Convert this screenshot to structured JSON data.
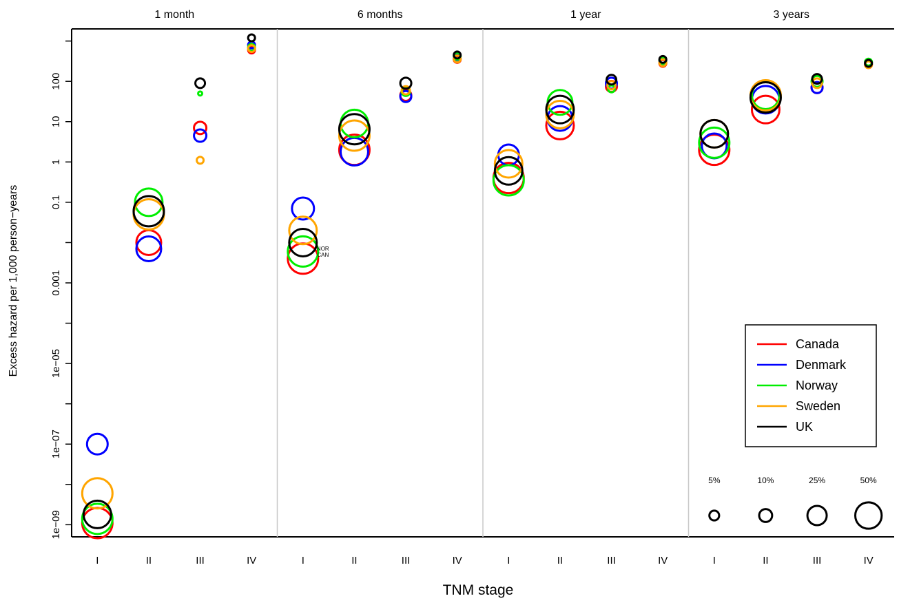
{
  "chart_data": {
    "type": "scatter",
    "xlabel": "TNM stage",
    "ylabel": "Excess hazard per 1,000 person−years",
    "y_scale": "log10",
    "ylim": [
      5e-10,
      2000
    ],
    "y_ticks": [
      {
        "value": 1e-09,
        "label": "1e−09"
      },
      {
        "value": 1e-08,
        "label": ""
      },
      {
        "value": 1e-07,
        "label": "1e−07"
      },
      {
        "value": 1e-06,
        "label": ""
      },
      {
        "value": 1e-05,
        "label": "1e−05"
      },
      {
        "value": 0.0001,
        "label": ""
      },
      {
        "value": 0.001,
        "label": "0.001"
      },
      {
        "value": 0.01,
        "label": ""
      },
      {
        "value": 0.1,
        "label": "0.1"
      },
      {
        "value": 1,
        "label": "1"
      },
      {
        "value": 10,
        "label": "10"
      },
      {
        "value": 100,
        "label": "100"
      },
      {
        "value": 1000,
        "label": ""
      }
    ],
    "stages": [
      "I",
      "II",
      "III",
      "IV"
    ],
    "panels": [
      "1 month",
      "6 months",
      "1 year",
      "3 years"
    ],
    "legend": {
      "placement": "bottom-right",
      "entries": [
        {
          "name": "Canada",
          "color": "#ff0000"
        },
        {
          "name": "Denmark",
          "color": "#0000ff"
        },
        {
          "name": "Norway",
          "color": "#00ee00"
        },
        {
          "name": "Sweden",
          "color": "#ffa500"
        },
        {
          "name": "UK",
          "color": "#000000"
        }
      ]
    },
    "size_legend": [
      {
        "label": "5%",
        "pct": 5
      },
      {
        "label": "10%",
        "pct": 10
      },
      {
        "label": "25%",
        "pct": 25
      },
      {
        "label": "50%",
        "pct": 50
      }
    ],
    "annotations": [
      {
        "panel": 1,
        "stage": 0,
        "lines": [
          "NOR",
          "CAN"
        ]
      }
    ],
    "series": [
      {
        "name": "Canada",
        "color": "#ff0000",
        "points": [
          [
            [
              1.1e-09,
              22
            ],
            [
              0.01,
              18
            ],
            [
              7,
              9
            ],
            [
              600,
              5
            ]
          ],
          [
            [
              0.004,
              22
            ],
            [
              2,
              22
            ],
            [
              45,
              8
            ],
            [
              350,
              5
            ]
          ],
          [
            [
              0.4,
              22
            ],
            [
              8,
              20
            ],
            [
              75,
              8
            ],
            [
              280,
              5
            ]
          ],
          [
            [
              2,
              22
            ],
            [
              20,
              20
            ],
            [
              70,
              8
            ],
            [
              260,
              5
            ]
          ]
        ]
      },
      {
        "name": "Denmark",
        "color": "#0000ff",
        "points": [
          [
            [
              1e-07,
              15
            ],
            [
              0.007,
              18
            ],
            [
              4.5,
              9
            ],
            [
              800,
              5
            ]
          ],
          [
            [
              0.07,
              16
            ],
            [
              1.8,
              20
            ],
            [
              42,
              8
            ],
            [
              370,
              5
            ]
          ],
          [
            [
              1.5,
              15
            ],
            [
              12,
              18
            ],
            [
              90,
              8
            ],
            [
              320,
              5
            ]
          ],
          [
            [
              2.5,
              18
            ],
            [
              35,
              20
            ],
            [
              70,
              8
            ],
            [
              290,
              5
            ]
          ]
        ]
      },
      {
        "name": "Norway",
        "color": "#00ee00",
        "points": [
          [
            [
              1.4e-09,
              22
            ],
            [
              0.1,
              20
            ],
            [
              50,
              3
            ],
            [
              700,
              5
            ]
          ],
          [
            [
              0.006,
              22
            ],
            [
              9,
              20
            ],
            [
              55,
              6
            ],
            [
              420,
              5
            ]
          ],
          [
            [
              0.35,
              22
            ],
            [
              30,
              18
            ],
            [
              65,
              5
            ],
            [
              330,
              5
            ]
          ],
          [
            [
              3,
              22
            ],
            [
              45,
              20
            ],
            [
              100,
              8
            ],
            [
              300,
              5
            ]
          ]
        ]
      },
      {
        "name": "Sweden",
        "color": "#ffa500",
        "points": [
          [
            [
              6e-09,
              22
            ],
            [
              0.05,
              22
            ],
            [
              1.1,
              5
            ],
            [
              650,
              5
            ]
          ],
          [
            [
              0.02,
              20
            ],
            [
              4.5,
              22
            ],
            [
              60,
              6
            ],
            [
              360,
              5
            ]
          ],
          [
            [
              0.9,
              20
            ],
            [
              15,
              20
            ],
            [
              80,
              6
            ],
            [
              290,
              5
            ]
          ],
          [
            [
              5,
              20
            ],
            [
              45,
              22
            ],
            [
              90,
              7
            ],
            [
              260,
              5
            ]
          ]
        ]
      },
      {
        "name": "UK",
        "color": "#000000",
        "points": [
          [
            [
              1.8e-09,
              20
            ],
            [
              0.06,
              22
            ],
            [
              90,
              7
            ],
            [
              1200,
              5
            ]
          ],
          [
            [
              0.01,
              20
            ],
            [
              6.5,
              22
            ],
            [
              90,
              8
            ],
            [
              450,
              5
            ]
          ],
          [
            [
              0.6,
              20
            ],
            [
              20,
              20
            ],
            [
              110,
              7
            ],
            [
              350,
              5
            ]
          ],
          [
            [
              5,
              20
            ],
            [
              40,
              22
            ],
            [
              115,
              7
            ],
            [
              280,
              5
            ]
          ]
        ]
      }
    ]
  }
}
